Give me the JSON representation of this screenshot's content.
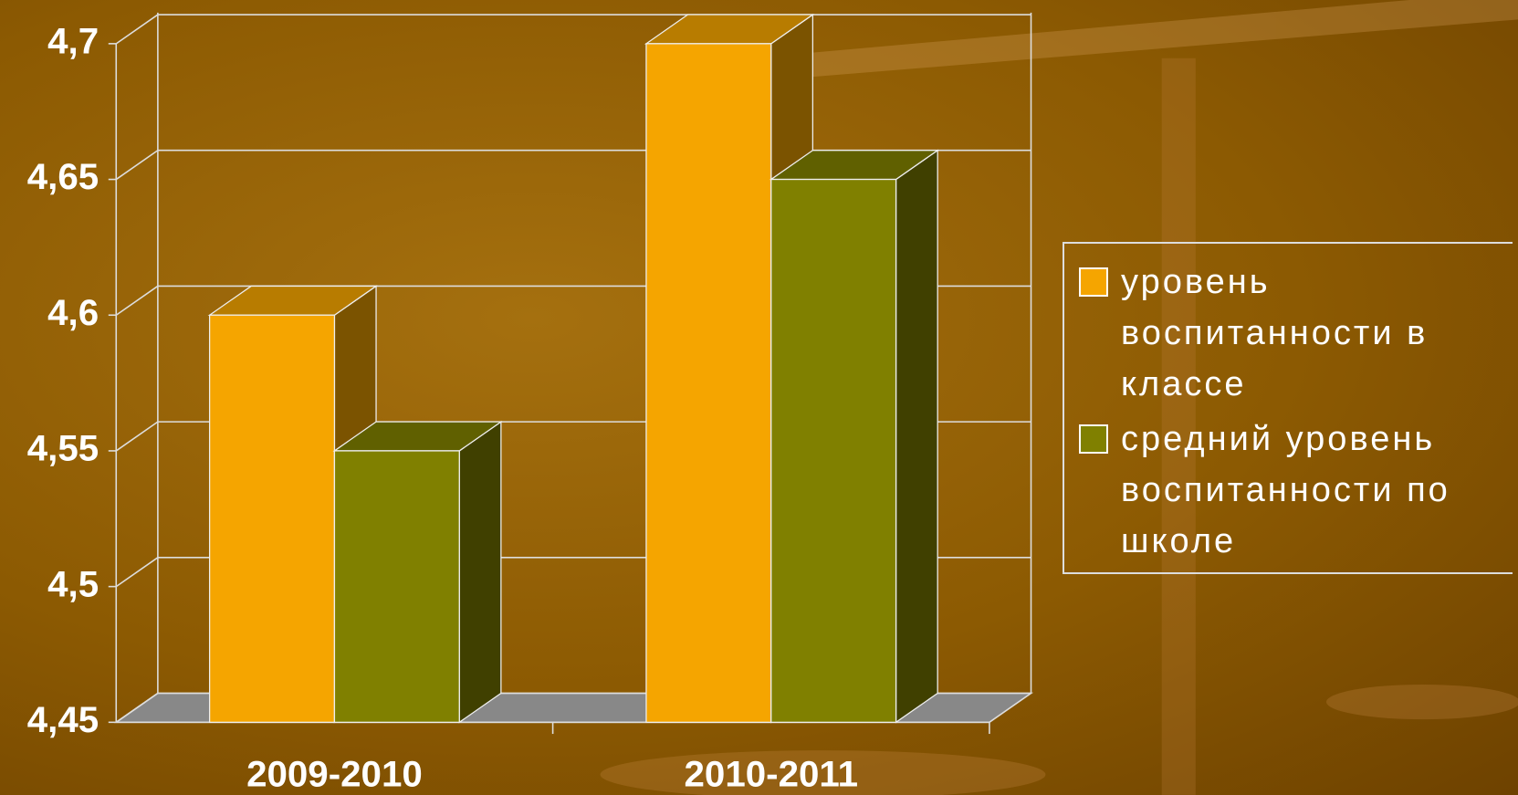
{
  "chart_data": {
    "type": "bar3d",
    "categories": [
      "2009-2010",
      "2010-2011"
    ],
    "series": [
      {
        "name": "уровень воспитанности в классе",
        "color": "#f5a500",
        "values": [
          4.6,
          4.7
        ]
      },
      {
        "name": "средний уровень воспитанности по школе",
        "color": "#808000",
        "values": [
          4.55,
          4.65
        ]
      }
    ],
    "ylim": [
      4.45,
      4.7
    ],
    "yticks": [
      {
        "value": 4.45,
        "label": "4,45"
      },
      {
        "value": 4.5,
        "label": "4,5"
      },
      {
        "value": 4.55,
        "label": "4,55"
      },
      {
        "value": 4.6,
        "label": "4,6"
      },
      {
        "value": 4.65,
        "label": "4,65"
      },
      {
        "value": 4.7,
        "label": "4,7"
      }
    ],
    "grid": true,
    "legend": "right"
  }
}
